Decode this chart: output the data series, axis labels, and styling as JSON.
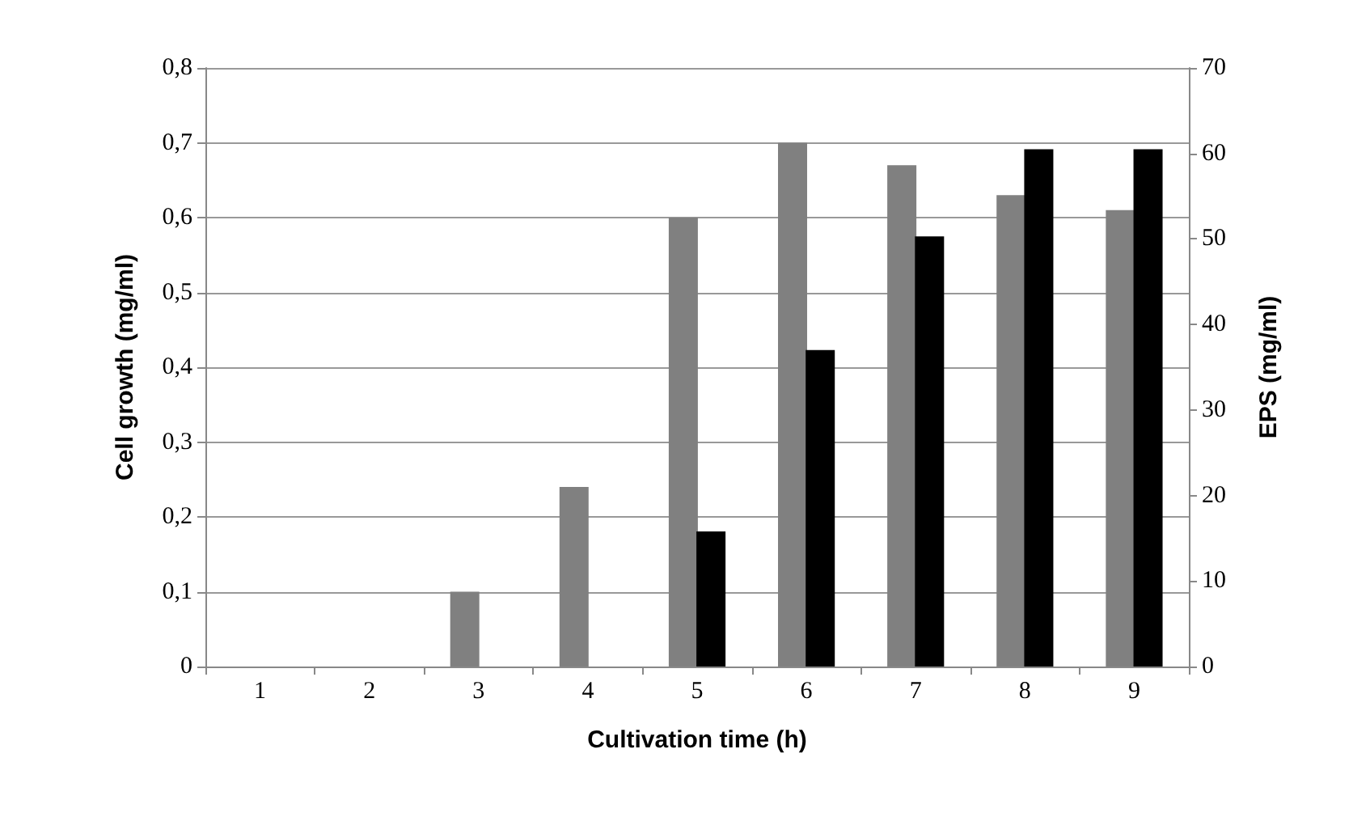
{
  "chart_data": {
    "type": "bar",
    "xlabel": "Cultivation time (h)",
    "ylabel": "Cell growth (mg/ml)",
    "y2label": "EPS (mg/ml)",
    "categories": [
      "1",
      "2",
      "3",
      "4",
      "5",
      "6",
      "7",
      "8",
      "9"
    ],
    "series": [
      {
        "color": "#808080",
        "values": [
          0,
          0,
          0.1,
          0.24,
          0.6,
          0.7,
          0.67,
          0.63,
          0.61
        ]
      },
      {
        "color": "#000000",
        "axis": "y2",
        "values": [
          0,
          0,
          0,
          0,
          15.8,
          37,
          50.3,
          60.5,
          60.5
        ]
      }
    ],
    "ylim": [
      0,
      0.8
    ],
    "yticks": [
      {
        "value": 0,
        "label": "0"
      },
      {
        "value": 0.1,
        "label": "0,1"
      },
      {
        "value": 0.2,
        "label": "0,2"
      },
      {
        "value": 0.3,
        "label": "0,3"
      },
      {
        "value": 0.4,
        "label": "0,4"
      },
      {
        "value": 0.5,
        "label": "0,5"
      },
      {
        "value": 0.6,
        "label": "0,6"
      },
      {
        "value": 0.7,
        "label": "0,7"
      },
      {
        "value": 0.8,
        "label": "0,8"
      }
    ],
    "y2lim": [
      0,
      70
    ],
    "y2ticks": [
      0,
      10,
      20,
      30,
      40,
      50,
      60,
      70
    ],
    "grid": "y"
  }
}
